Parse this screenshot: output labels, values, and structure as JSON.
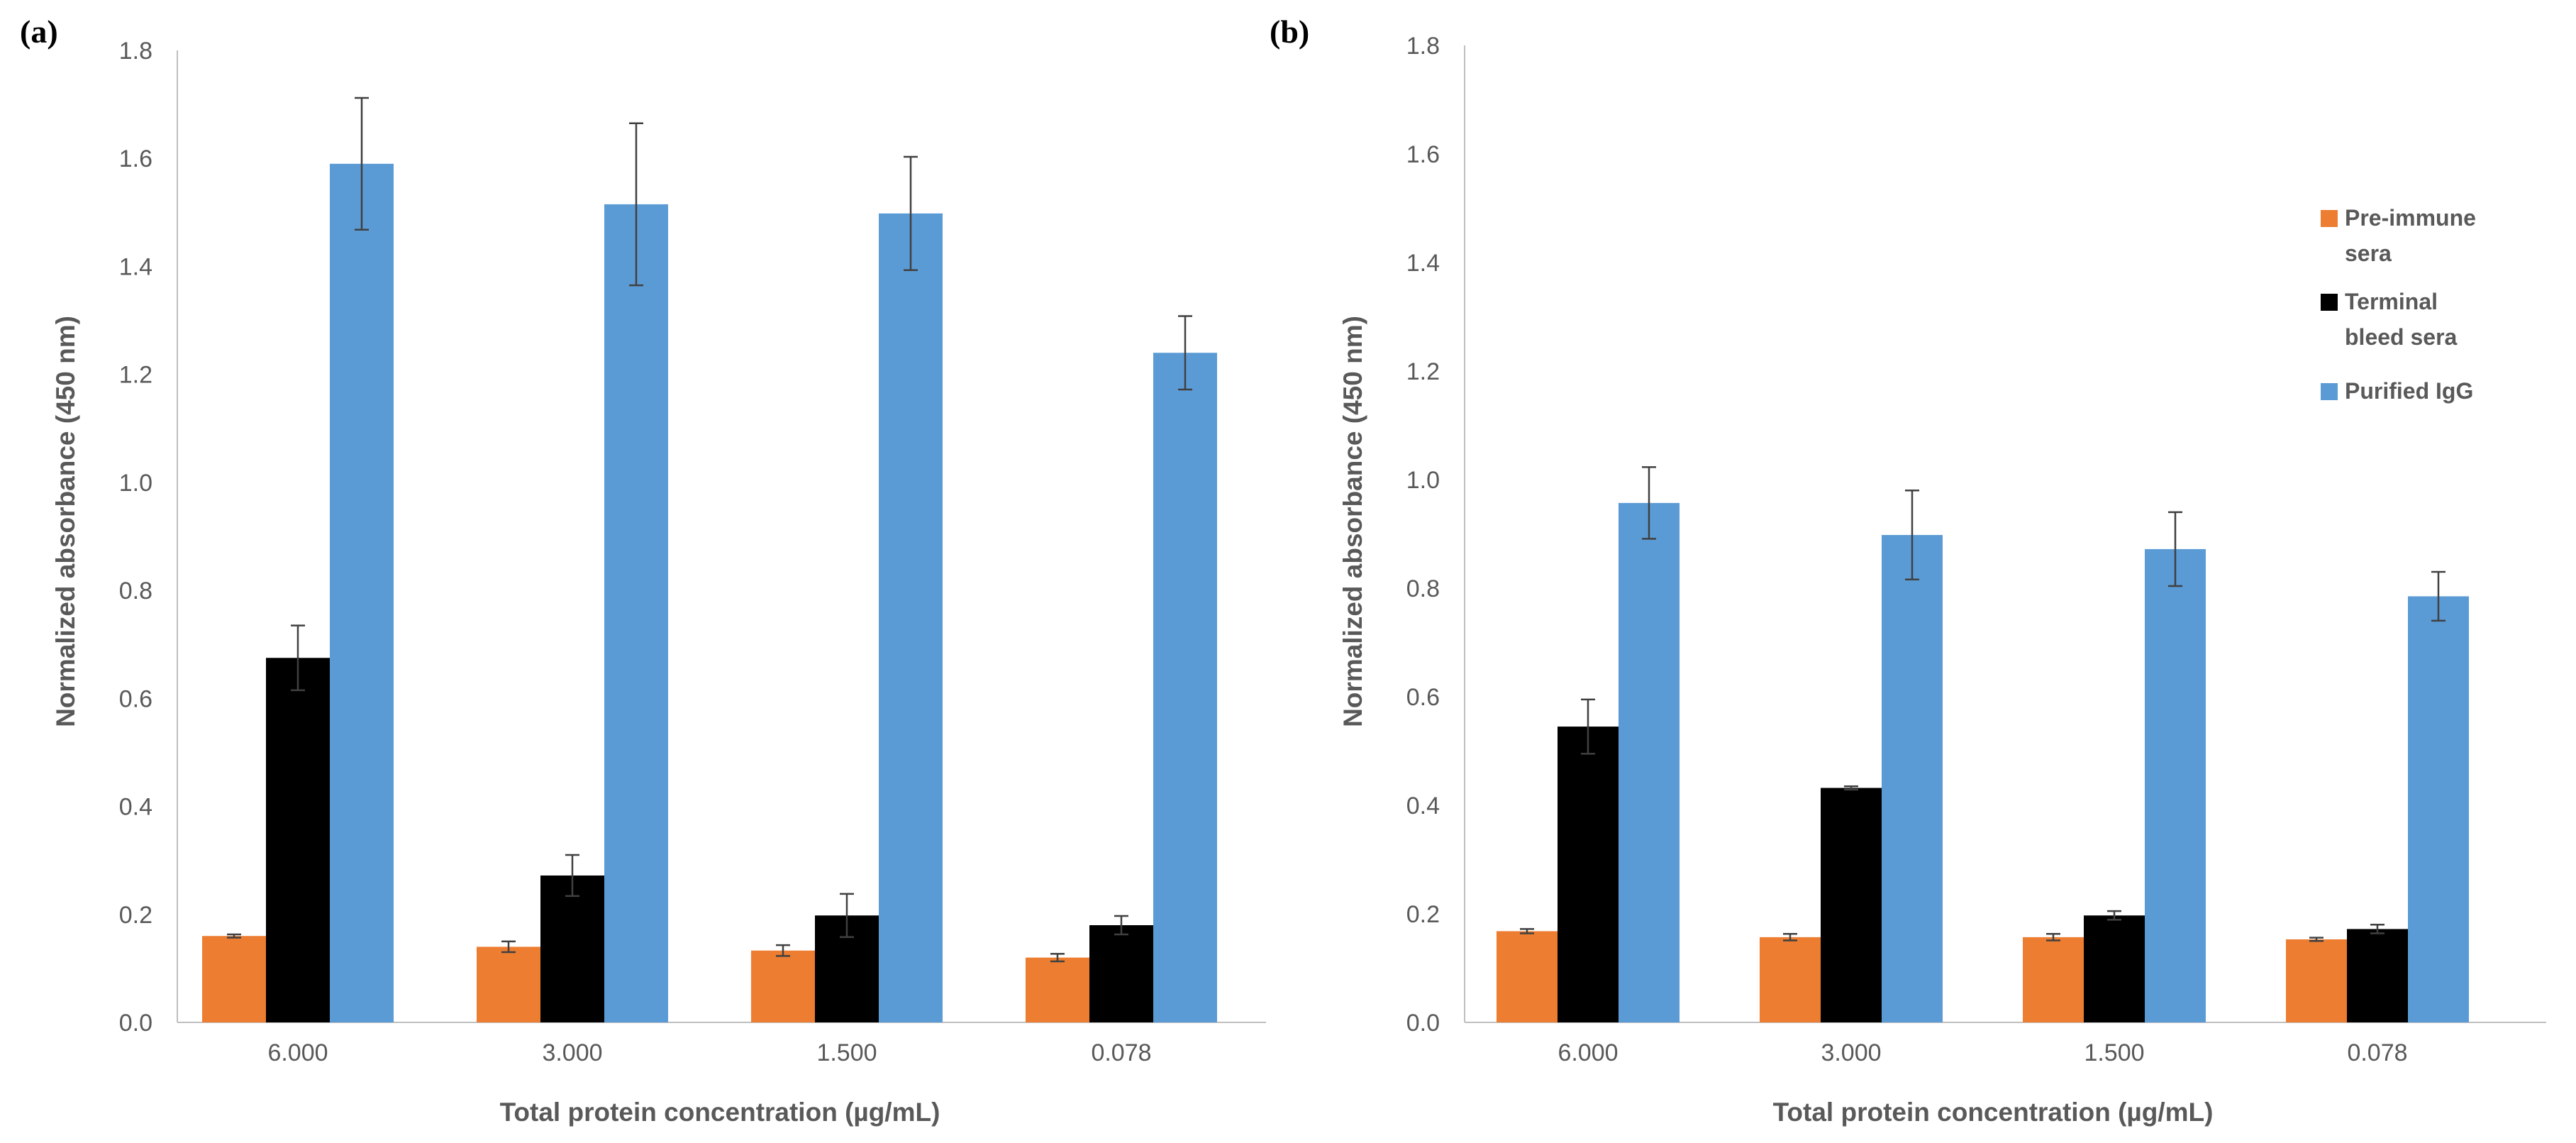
{
  "chart_data": [
    {
      "panel_label": "(a)",
      "type": "bar",
      "title": "",
      "xlabel": "Total protein concentration (µg/mL)",
      "ylabel": "Normalized absorbance (450 nm)",
      "ylim": [
        0,
        1.8
      ],
      "yticks": [
        "0.0",
        "0.2",
        "0.4",
        "0.6",
        "0.8",
        "1.0",
        "1.2",
        "1.4",
        "1.6",
        "1.8"
      ],
      "grid": false,
      "categories": [
        "6.000",
        "3.000",
        "1.500",
        "0.078"
      ],
      "series": [
        {
          "name": "Pre-immune sera",
          "color": "#ed7d31",
          "values": [
            0.16,
            0.14,
            0.133,
            0.12
          ],
          "errors": [
            0.003,
            0.01,
            0.01,
            0.007
          ]
        },
        {
          "name": "Terminal bleed sera",
          "color": "#000000",
          "values": [
            0.675,
            0.272,
            0.198,
            0.18
          ],
          "errors": [
            0.06,
            0.038,
            0.04,
            0.017
          ]
        },
        {
          "name": "Purified IgG",
          "color": "#5b9bd5",
          "values": [
            1.59,
            1.515,
            1.498,
            1.24
          ],
          "errors": [
            0.122,
            0.15,
            0.105,
            0.068
          ]
        }
      ]
    },
    {
      "panel_label": "(b)",
      "type": "bar",
      "title": "",
      "xlabel": "Total protein concentration (µg/mL)",
      "ylabel": "Normalized absorbance (450 nm)",
      "ylim": [
        0,
        1.8
      ],
      "yticks": [
        "0.0",
        "0.2",
        "0.4",
        "0.6",
        "0.8",
        "1.0",
        "1.2",
        "1.4",
        "1.6",
        "1.8"
      ],
      "grid": false,
      "legend_position": "right",
      "legend": [
        {
          "lines": [
            "Pre-immune",
            "sera"
          ],
          "color": "#ed7d31"
        },
        {
          "lines": [
            "Terminal",
            "bleed sera"
          ],
          "color": "#000000"
        },
        {
          "lines": [
            "Purified IgG"
          ],
          "color": "#5b9bd5"
        }
      ],
      "categories": [
        "6.000",
        "3.000",
        "1.500",
        "0.078"
      ],
      "series": [
        {
          "name": "Pre-immune sera",
          "color": "#ed7d31",
          "values": [
            0.168,
            0.157,
            0.157,
            0.153
          ],
          "errors": [
            0.004,
            0.006,
            0.006,
            0.003
          ]
        },
        {
          "name": "Terminal bleed sera",
          "color": "#000000",
          "values": [
            0.545,
            0.432,
            0.197,
            0.172
          ],
          "errors": [
            0.05,
            0.003,
            0.008,
            0.008
          ]
        },
        {
          "name": "Purified IgG",
          "color": "#5b9bd5",
          "values": [
            0.957,
            0.898,
            0.872,
            0.785
          ],
          "errors": [
            0.066,
            0.082,
            0.068,
            0.045
          ]
        }
      ]
    }
  ]
}
